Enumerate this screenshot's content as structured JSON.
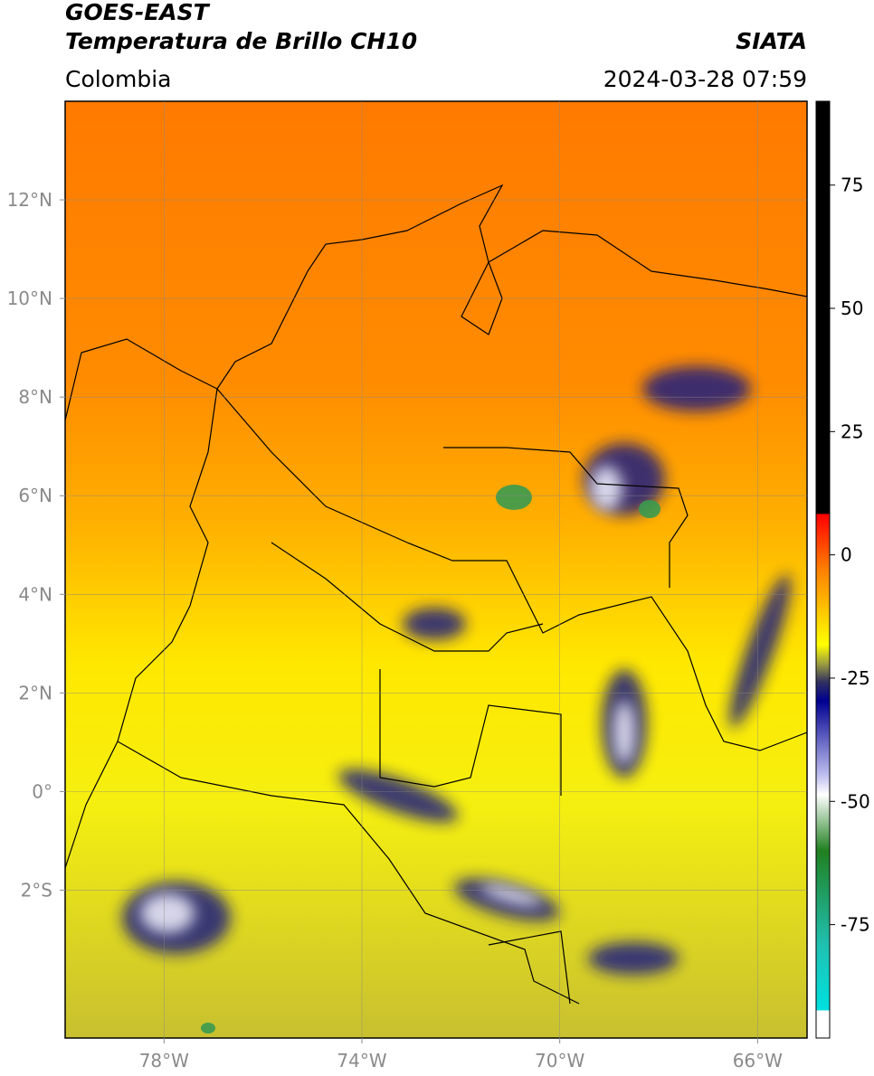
{
  "header": {
    "title": "GOES-EAST",
    "subtitle": "Temperatura de Brillo CH10",
    "source": "SIATA",
    "region": "Colombia",
    "datetime": "2024-03-28 07:59"
  },
  "map": {
    "lon_range": [
      -80,
      -65
    ],
    "lat_range": [
      -5,
      14
    ],
    "lon_ticks": [
      {
        "value": -78,
        "label": "78°W"
      },
      {
        "value": -74,
        "label": "74°W"
      },
      {
        "value": -70,
        "label": "70°W"
      },
      {
        "value": -66,
        "label": "66°W"
      }
    ],
    "lat_ticks": [
      {
        "value": 12,
        "label": "12°N"
      },
      {
        "value": 10,
        "label": "10°N"
      },
      {
        "value": 8,
        "label": "8°N"
      },
      {
        "value": 6,
        "label": "6°N"
      },
      {
        "value": 4,
        "label": "4°N"
      },
      {
        "value": 2,
        "label": "2°N"
      },
      {
        "value": 0,
        "label": "0°"
      },
      {
        "value": -2,
        "label": "2°S"
      }
    ],
    "grid": true
  },
  "colorbar": {
    "range": [
      -98,
      92
    ],
    "ticks": [
      75,
      50,
      25,
      0,
      -25,
      -50,
      -75
    ]
  }
}
